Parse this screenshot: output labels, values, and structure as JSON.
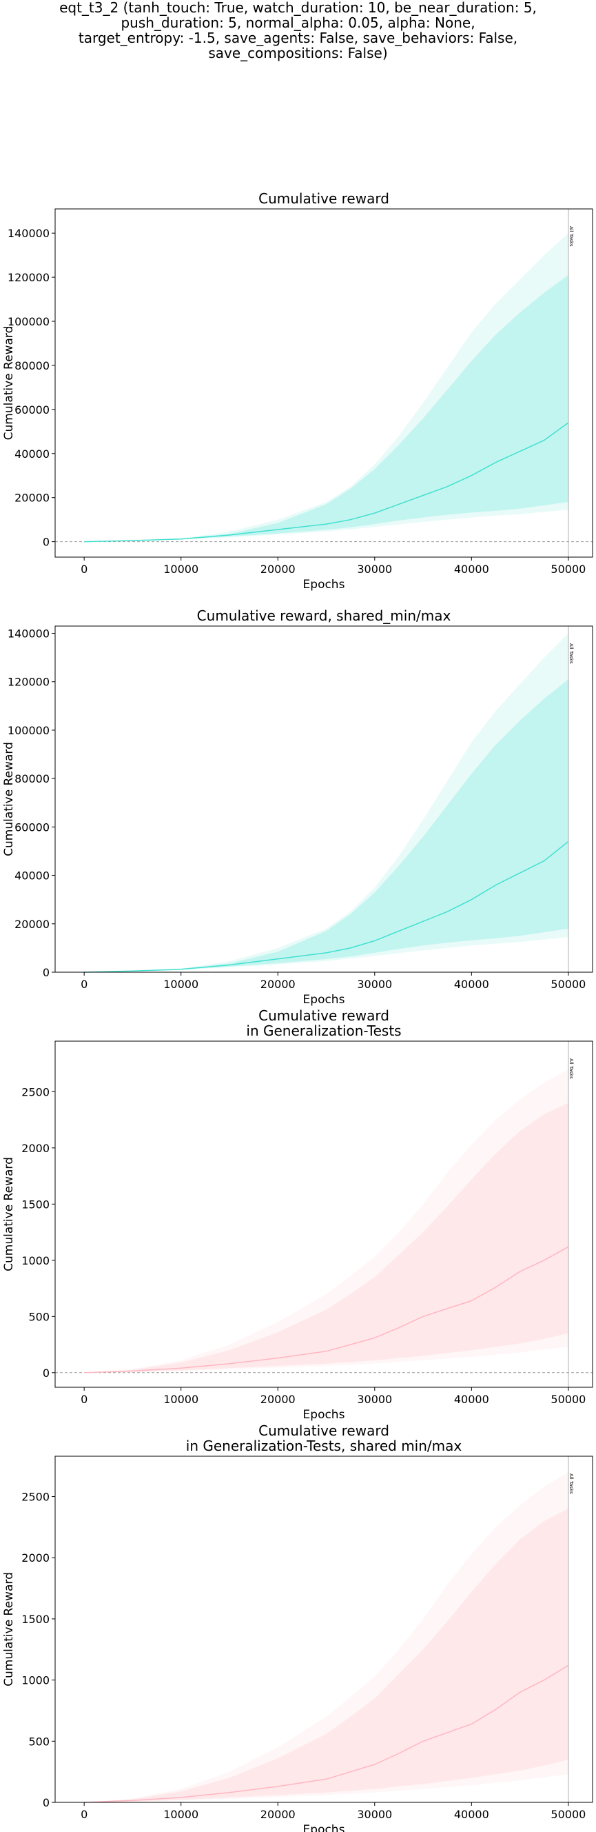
{
  "suptitle": [
    "eqt_t3_2 (tanh_touch: True, watch_duration: 10, be_near_duration: 5,",
    "push_duration: 5, normal_alpha: 0.05, alpha: None,",
    "target_entropy: -1.5, save_agents: False, save_behaviors: False,",
    "save_compositions: False)"
  ],
  "chart_data": [
    {
      "type": "line",
      "title": [
        "Cumulative reward"
      ],
      "xlabel": "Epochs",
      "ylabel": "Cumulative Reward",
      "xlim": [
        -3000,
        52500
      ],
      "ylim": [
        -7000,
        151000
      ],
      "xticks": [
        0,
        10000,
        20000,
        30000,
        40000,
        50000
      ],
      "yticks": [
        0,
        20000,
        40000,
        60000,
        80000,
        100000,
        120000,
        140000
      ],
      "zero_line": true,
      "vline": {
        "x": 50000,
        "label": "All Tasks"
      },
      "color": "#40e0d0",
      "x": [
        0,
        5000,
        10000,
        15000,
        20000,
        25000,
        27500,
        30000,
        32500,
        35000,
        37500,
        40000,
        42500,
        45000,
        47500,
        50000
      ],
      "series": [
        {
          "name": "",
          "values": [
            0,
            500,
            1200,
            3000,
            5500,
            8000,
            10000,
            13000,
            17000,
            21000,
            25000,
            30000,
            36000,
            41000,
            46000,
            54000
          ]
        },
        {
          "values": [
            0,
            500,
            1400,
            3600,
            8500,
            17000,
            24000,
            33000,
            44000,
            56000,
            69000,
            82000,
            94000,
            104000,
            113000,
            121000
          ]
        },
        {
          "values": [
            0,
            500,
            1100,
            2300,
            3700,
            5400,
            6500,
            8000,
            9600,
            11000,
            12200,
            13200,
            14000,
            15000,
            16500,
            18000
          ]
        },
        {
          "values": [
            0,
            500,
            1500,
            4500,
            10000,
            18000,
            25000,
            35000,
            48000,
            63000,
            79000,
            95000,
            108000,
            119000,
            130000,
            140000
          ]
        },
        {
          "values": [
            0,
            500,
            1000,
            2000,
            3200,
            4600,
            5600,
            6700,
            7900,
            9000,
            10000,
            11000,
            11800,
            12500,
            13500,
            14500
          ]
        }
      ]
    },
    {
      "type": "line",
      "title": [
        "Cumulative reward, shared_min/max"
      ],
      "xlabel": "Epochs",
      "ylabel": "Cumulative Reward",
      "xlim": [
        -3000,
        52500
      ],
      "ylim": [
        0,
        143000
      ],
      "xticks": [
        0,
        10000,
        20000,
        30000,
        40000,
        50000
      ],
      "yticks": [
        0,
        20000,
        40000,
        60000,
        80000,
        100000,
        120000,
        140000
      ],
      "zero_line": false,
      "vline": {
        "x": 50000,
        "label": "All Tasks"
      },
      "color": "#40e0d0",
      "x": [
        0,
        5000,
        10000,
        15000,
        20000,
        25000,
        27500,
        30000,
        32500,
        35000,
        37500,
        40000,
        42500,
        45000,
        47500,
        50000
      ],
      "series": [
        {
          "values": [
            0,
            500,
            1200,
            3000,
            5500,
            8000,
            10000,
            13000,
            17000,
            21000,
            25000,
            30000,
            36000,
            41000,
            46000,
            54000
          ]
        },
        {
          "values": [
            0,
            500,
            1400,
            3600,
            8500,
            17000,
            24000,
            33000,
            44000,
            56000,
            69000,
            82000,
            94000,
            104000,
            113000,
            121000
          ]
        },
        {
          "values": [
            0,
            500,
            1100,
            2300,
            3700,
            5400,
            6500,
            8000,
            9600,
            11000,
            12200,
            13200,
            14000,
            15000,
            16500,
            18000
          ]
        },
        {
          "values": [
            0,
            500,
            1500,
            4500,
            10000,
            18000,
            25000,
            35000,
            48000,
            63000,
            79000,
            95000,
            108000,
            119000,
            130000,
            140000
          ]
        },
        {
          "values": [
            0,
            500,
            1000,
            2000,
            3200,
            4600,
            5600,
            6700,
            7900,
            9000,
            10000,
            11000,
            11800,
            12500,
            13500,
            14500
          ]
        }
      ]
    },
    {
      "type": "line",
      "title": [
        "Cumulative reward",
        "in Generalization-Tests"
      ],
      "xlabel": "Epochs",
      "ylabel": "Cumulative Reward",
      "xlim": [
        -3000,
        52500
      ],
      "ylim": [
        -130,
        2950
      ],
      "xticks": [
        0,
        10000,
        20000,
        30000,
        40000,
        50000
      ],
      "yticks": [
        0,
        500,
        1000,
        1500,
        2000,
        2500
      ],
      "zero_line": true,
      "vline": {
        "x": 50000,
        "label": "All Tasks"
      },
      "color": "#ffb6c1",
      "x": [
        0,
        5000,
        10000,
        15000,
        20000,
        25000,
        27500,
        30000,
        32500,
        35000,
        37500,
        40000,
        42500,
        45000,
        47500,
        50000
      ],
      "series": [
        {
          "values": [
            0,
            15,
            40,
            80,
            130,
            190,
            250,
            310,
            400,
            500,
            570,
            640,
            760,
            900,
            1000,
            1120
          ]
        },
        {
          "values": [
            0,
            25,
            90,
            200,
            360,
            560,
            700,
            850,
            1050,
            1250,
            1480,
            1720,
            1950,
            2150,
            2300,
            2400
          ]
        },
        {
          "values": [
            0,
            8,
            20,
            40,
            60,
            80,
            95,
            110,
            130,
            150,
            175,
            200,
            230,
            260,
            300,
            350
          ]
        },
        {
          "values": [
            0,
            30,
            110,
            250,
            450,
            700,
            860,
            1030,
            1250,
            1500,
            1780,
            2030,
            2250,
            2430,
            2580,
            2700
          ]
        },
        {
          "values": [
            0,
            5,
            15,
            30,
            45,
            60,
            70,
            80,
            95,
            110,
            125,
            140,
            160,
            180,
            205,
            230
          ]
        }
      ]
    },
    {
      "type": "line",
      "title": [
        "Cumulative reward",
        "in Generalization-Tests, shared min/max"
      ],
      "xlabel": "Epochs",
      "ylabel": "Cumulative Reward",
      "xlim": [
        -3000,
        52500
      ],
      "ylim": [
        0,
        2830
      ],
      "xticks": [
        0,
        10000,
        20000,
        30000,
        40000,
        50000
      ],
      "yticks": [
        0,
        500,
        1000,
        1500,
        2000,
        2500
      ],
      "zero_line": false,
      "vline": {
        "x": 50000,
        "label": "All Tasks"
      },
      "color": "#ffb6c1",
      "x": [
        0,
        5000,
        10000,
        15000,
        20000,
        25000,
        27500,
        30000,
        32500,
        35000,
        37500,
        40000,
        42500,
        45000,
        47500,
        50000
      ],
      "series": [
        {
          "values": [
            0,
            15,
            40,
            80,
            130,
            190,
            250,
            310,
            400,
            500,
            570,
            640,
            760,
            900,
            1000,
            1120
          ]
        },
        {
          "values": [
            0,
            25,
            90,
            200,
            360,
            560,
            700,
            850,
            1050,
            1250,
            1480,
            1720,
            1950,
            2150,
            2300,
            2400
          ]
        },
        {
          "values": [
            0,
            8,
            20,
            40,
            60,
            80,
            95,
            110,
            130,
            150,
            175,
            200,
            230,
            260,
            300,
            350
          ]
        },
        {
          "values": [
            0,
            30,
            110,
            250,
            450,
            700,
            860,
            1030,
            1250,
            1500,
            1780,
            2030,
            2250,
            2430,
            2580,
            2700
          ]
        },
        {
          "values": [
            0,
            5,
            15,
            30,
            45,
            60,
            70,
            80,
            95,
            110,
            125,
            140,
            160,
            180,
            205,
            230
          ]
        }
      ]
    }
  ]
}
